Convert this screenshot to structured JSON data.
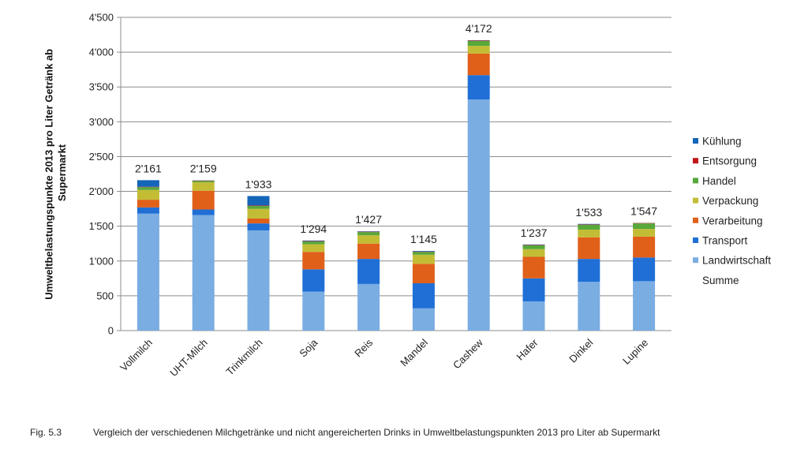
{
  "caption": {
    "figure_label": "Fig. 5.3",
    "text": "Vergleich der verschiedenen Milchgetränke und nicht angereicherten Drinks in Umweltbelastungspunkten 2013 pro Liter ab Supermarkt"
  },
  "chart_data": {
    "type": "bar",
    "stacked": true,
    "ylabel": "Umweltbelastungspunkte 2013 pro Liter Getränk ab Supermarkt",
    "ylim": [
      0,
      4500
    ],
    "yticks": [
      0,
      500,
      1000,
      1500,
      2000,
      2500,
      3000,
      3500,
      4000,
      4500
    ],
    "ytick_labels": [
      "0",
      "500",
      "1'000",
      "1'500",
      "2'000",
      "2'500",
      "3'000",
      "3'500",
      "4'000",
      "4'500"
    ],
    "grid": true,
    "legend_position": "right",
    "categories": [
      "Vollmilch",
      "UHT-Milch",
      "Trinkmilch",
      "Soja",
      "Reis",
      "Mandel",
      "Cashew",
      "Hafer",
      "Dinkel",
      "Lupine"
    ],
    "series": [
      {
        "name": "Landwirtschaft",
        "color": "#7aade2",
        "values": [
          1680,
          1660,
          1440,
          560,
          670,
          320,
          3320,
          420,
          700,
          710
        ]
      },
      {
        "name": "Transport",
        "color": "#1f6fd6",
        "values": [
          90,
          80,
          100,
          320,
          360,
          360,
          350,
          330,
          330,
          340
        ]
      },
      {
        "name": "Verarbeitung",
        "color": "#e0601a",
        "values": [
          110,
          270,
          70,
          250,
          220,
          280,
          310,
          310,
          310,
          300
        ]
      },
      {
        "name": "Verpackung",
        "color": "#c2bd35",
        "values": [
          140,
          120,
          140,
          110,
          120,
          130,
          110,
          110,
          110,
          110
        ]
      },
      {
        "name": "Handel",
        "color": "#58a83b",
        "values": [
          40,
          20,
          40,
          40,
          45,
          40,
          70,
          55,
          70,
          80
        ]
      },
      {
        "name": "Entsorgung",
        "color": "#c01818",
        "values": [
          6,
          6,
          8,
          6,
          6,
          6,
          8,
          6,
          6,
          6
        ]
      },
      {
        "name": "Kühlung",
        "color": "#1565b8",
        "values": [
          95,
          3,
          135,
          8,
          6,
          9,
          4,
          6,
          7,
          1
        ]
      }
    ],
    "totals_label": "Summe",
    "totals": [
      "2'161",
      "2'159",
      "1'933",
      "1'294",
      "1'427",
      "1'145",
      "4'172",
      "1'237",
      "1'533",
      "1'547"
    ]
  }
}
